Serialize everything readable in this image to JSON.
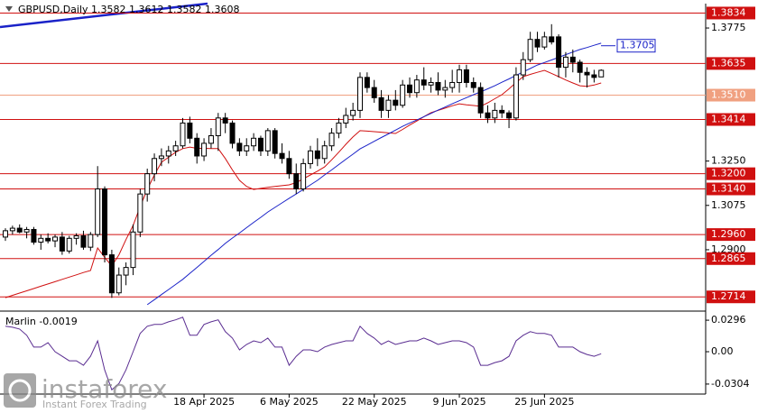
{
  "chart_data": {
    "type": "candlestick",
    "title": "GBPUSD,Daily  1.3582 1.3612 1.3582 1.3608",
    "categories": [
      null,
      null,
      null,
      null,
      null,
      null,
      null,
      null,
      null,
      null,
      null,
      null,
      null,
      null,
      null,
      null,
      null,
      null,
      null,
      null,
      null,
      null,
      null,
      null,
      null,
      null,
      null,
      null,
      "18 Apr 2025",
      null,
      null,
      null,
      null,
      null,
      null,
      null,
      null,
      null,
      null,
      null,
      "6 May 2025",
      null,
      null,
      null,
      null,
      null,
      null,
      null,
      null,
      null,
      null,
      null,
      "22 May 2025",
      null,
      null,
      null,
      null,
      null,
      null,
      null,
      null,
      null,
      null,
      null,
      "9 Jun 2025",
      null,
      null,
      null,
      null,
      null,
      null,
      null,
      null,
      null,
      null,
      null,
      "25 Jun 2025",
      null,
      null,
      null,
      null,
      null,
      null,
      null,
      null
    ],
    "ohlc": [
      [
        1.295,
        1.2985,
        1.2935,
        1.2975
      ],
      [
        1.2975,
        1.2995,
        1.296,
        1.2985
      ],
      [
        1.2985,
        1.3,
        1.2965,
        1.297
      ],
      [
        1.297,
        1.299,
        1.2945,
        1.298
      ],
      [
        1.298,
        1.299,
        1.292,
        1.293
      ],
      [
        1.293,
        1.296,
        1.29,
        1.2945
      ],
      [
        1.2945,
        1.2965,
        1.2925,
        1.2935
      ],
      [
        1.2935,
        1.296,
        1.291,
        1.295
      ],
      [
        1.295,
        1.297,
        1.288,
        1.2895
      ],
      [
        1.2895,
        1.2955,
        1.2885,
        1.2945
      ],
      [
        1.2945,
        1.2965,
        1.292,
        1.2955
      ],
      [
        1.2955,
        1.2975,
        1.29,
        1.291
      ],
      [
        1.291,
        1.297,
        1.2895,
        1.296
      ],
      [
        1.296,
        1.323,
        1.295,
        1.314
      ],
      [
        1.314,
        1.315,
        1.285,
        1.288
      ],
      [
        1.288,
        1.29,
        1.271,
        1.273
      ],
      [
        1.273,
        1.283,
        1.272,
        1.28
      ],
      [
        1.28,
        1.285,
        1.276,
        1.283
      ],
      [
        1.283,
        1.3,
        1.28,
        1.297
      ],
      [
        1.297,
        1.314,
        1.295,
        1.312
      ],
      [
        1.312,
        1.322,
        1.309,
        1.32
      ],
      [
        1.32,
        1.328,
        1.317,
        1.326
      ],
      [
        1.326,
        1.33,
        1.323,
        1.327
      ],
      [
        1.327,
        1.331,
        1.324,
        1.329
      ],
      [
        1.329,
        1.333,
        1.327,
        1.331
      ],
      [
        1.331,
        1.342,
        1.33,
        1.34
      ],
      [
        1.34,
        1.3425,
        1.332,
        1.334
      ],
      [
        1.334,
        1.336,
        1.324,
        1.327
      ],
      [
        1.327,
        1.334,
        1.325,
        1.332
      ],
      [
        1.332,
        1.338,
        1.33,
        1.335
      ],
      [
        1.335,
        1.344,
        1.329,
        1.342
      ],
      [
        1.342,
        1.344,
        1.336,
        1.34
      ],
      [
        1.34,
        1.341,
        1.33,
        1.332
      ],
      [
        1.332,
        1.334,
        1.327,
        1.329
      ],
      [
        1.329,
        1.334,
        1.327,
        1.331
      ],
      [
        1.331,
        1.336,
        1.329,
        1.334
      ],
      [
        1.334,
        1.335,
        1.327,
        1.329
      ],
      [
        1.329,
        1.338,
        1.327,
        1.337
      ],
      [
        1.337,
        1.338,
        1.326,
        1.328
      ],
      [
        1.328,
        1.332,
        1.324,
        1.326
      ],
      [
        1.326,
        1.329,
        1.318,
        1.32
      ],
      [
        1.32,
        1.324,
        1.312,
        1.314
      ],
      [
        1.314,
        1.326,
        1.313,
        1.324
      ],
      [
        1.324,
        1.331,
        1.322,
        1.329
      ],
      [
        1.329,
        1.334,
        1.323,
        1.326
      ],
      [
        1.326,
        1.333,
        1.324,
        1.331
      ],
      [
        1.331,
        1.338,
        1.329,
        1.336
      ],
      [
        1.336,
        1.342,
        1.334,
        1.34
      ],
      [
        1.34,
        1.346,
        1.338,
        1.343
      ],
      [
        1.343,
        1.348,
        1.341,
        1.345
      ],
      [
        1.345,
        1.36,
        1.342,
        1.358
      ],
      [
        1.358,
        1.36,
        1.352,
        1.354
      ],
      [
        1.354,
        1.357,
        1.348,
        1.35
      ],
      [
        1.35,
        1.353,
        1.342,
        1.345
      ],
      [
        1.345,
        1.351,
        1.342,
        1.349
      ],
      [
        1.349,
        1.353,
        1.345,
        1.347
      ],
      [
        1.347,
        1.357,
        1.346,
        1.355
      ],
      [
        1.355,
        1.358,
        1.35,
        1.352
      ],
      [
        1.352,
        1.359,
        1.35,
        1.357
      ],
      [
        1.357,
        1.362,
        1.353,
        1.355
      ],
      [
        1.355,
        1.358,
        1.352,
        1.356
      ],
      [
        1.356,
        1.36,
        1.351,
        1.353
      ],
      [
        1.353,
        1.357,
        1.35,
        1.354
      ],
      [
        1.354,
        1.361,
        1.352,
        1.356
      ],
      [
        1.356,
        1.363,
        1.352,
        1.361
      ],
      [
        1.361,
        1.363,
        1.354,
        1.356
      ],
      [
        1.356,
        1.358,
        1.352,
        1.354
      ],
      [
        1.354,
        1.356,
        1.342,
        1.344
      ],
      [
        1.344,
        1.347,
        1.34,
        1.342
      ],
      [
        1.342,
        1.348,
        1.34,
        1.345
      ],
      [
        1.345,
        1.347,
        1.342,
        1.344
      ],
      [
        1.344,
        1.345,
        1.338,
        1.342
      ],
      [
        1.342,
        1.362,
        1.341,
        1.359
      ],
      [
        1.359,
        1.368,
        1.357,
        1.365
      ],
      [
        1.365,
        1.376,
        1.364,
        1.373
      ],
      [
        1.373,
        1.376,
        1.368,
        1.37
      ],
      [
        1.37,
        1.376,
        1.369,
        1.374
      ],
      [
        1.374,
        1.379,
        1.371,
        1.372
      ],
      [
        1.374,
        1.375,
        1.358,
        1.362
      ],
      [
        1.362,
        1.368,
        1.358,
        1.366
      ],
      [
        1.366,
        1.369,
        1.36,
        1.364
      ],
      [
        1.364,
        1.365,
        1.356,
        1.36
      ],
      [
        1.36,
        1.362,
        1.354,
        1.359
      ],
      [
        1.359,
        1.361,
        1.356,
        1.358
      ],
      [
        1.3582,
        1.3612,
        1.3582,
        1.3608
      ]
    ],
    "up_color": "#ffffff",
    "down_color": "#000000",
    "ylim": [
      1.2665,
      1.3857
    ],
    "yticks": [
      1.3775,
      {
        "value": 1.325,
        "label": "1.3250"
      },
      1.3075,
      {
        "value": 1.29,
        "label": "1.2900"
      }
    ],
    "lines": [
      {
        "color": "#d01010",
        "values": [
          1.2711,
          1.272,
          1.2729,
          1.2738,
          1.2747,
          1.2756,
          1.2765,
          1.2774,
          1.2783,
          1.2792,
          1.2801,
          1.281,
          1.2818,
          1.2907,
          1.287,
          1.2836,
          1.288,
          1.294,
          1.2996,
          1.307,
          1.3138,
          1.3195,
          1.3245,
          1.3265,
          1.3285,
          1.3299,
          1.3305,
          1.33,
          1.33,
          1.3299,
          1.3299,
          1.326,
          1.3215,
          1.3174,
          1.315,
          1.3138,
          1.3142,
          1.3146,
          1.315,
          1.3153,
          1.3156,
          1.3165,
          1.318,
          1.3195,
          1.321,
          1.3227,
          1.3255,
          1.3285,
          1.3316,
          1.3345,
          1.337,
          1.3368,
          1.3366,
          1.3364,
          1.3361,
          1.3359,
          1.3375,
          1.3392,
          1.3408,
          1.3425,
          1.3441,
          1.345,
          1.3459,
          1.3468,
          1.3476,
          1.3472,
          1.3469,
          1.3466,
          1.348,
          1.3496,
          1.3512,
          1.3535,
          1.356,
          1.3583,
          1.3592,
          1.36,
          1.3608,
          1.3596,
          1.3583,
          1.357,
          1.3558,
          1.3547,
          1.3545,
          1.355,
          1.3558
        ]
      },
      {
        "color": "#1a22c8",
        "values": [
          null,
          null,
          null,
          null,
          null,
          null,
          null,
          null,
          null,
          null,
          null,
          null,
          null,
          null,
          null,
          null,
          null,
          null,
          null,
          null,
          1.2683,
          1.2703,
          1.2723,
          1.2743,
          1.2763,
          1.2783,
          1.2807,
          1.283,
          1.2854,
          1.2878,
          1.2901,
          1.2925,
          1.2946,
          1.2966,
          1.2987,
          1.3008,
          1.3028,
          1.3049,
          1.3067,
          1.3085,
          1.3103,
          1.312,
          1.3138,
          1.3156,
          1.3174,
          1.3195,
          1.3215,
          1.3236,
          1.3257,
          1.3277,
          1.3298,
          1.3313,
          1.3328,
          1.3343,
          1.3357,
          1.3372,
          1.3387,
          1.34,
          1.3412,
          1.3425,
          1.3438,
          1.3451,
          1.3463,
          1.3476,
          1.3488,
          1.35,
          1.3512,
          1.3523,
          1.3535,
          1.3547,
          1.3561,
          1.3574,
          1.3588,
          1.3602,
          1.3615,
          1.3629,
          1.3639,
          1.3649,
          1.3659,
          1.367,
          1.368,
          1.369,
          1.3698,
          1.3707,
          1.3715
        ]
      }
    ],
    "levels": [
      {
        "value": 1.3834,
        "label": "1.3834",
        "color": "#d01010"
      },
      {
        "value": 1.3635,
        "label": "1.3635",
        "color": "#d01010"
      },
      {
        "value": 1.351,
        "label": "1.3510",
        "color": "#f0a080"
      },
      {
        "value": 1.3414,
        "label": "1.3414",
        "color": "#d01010"
      },
      {
        "value": 1.32,
        "label": "1.3200",
        "color": "#d01010"
      },
      {
        "value": 1.314,
        "label": "1.3140",
        "color": "#d01010"
      },
      {
        "value": 1.296,
        "label": "1.2960",
        "color": "#d01010"
      },
      {
        "value": 1.2865,
        "label": "1.2865",
        "color": "#d01010"
      },
      {
        "value": 1.2714,
        "label": "1.2714",
        "color": "#d01010"
      }
    ],
    "annotation": {
      "value": 1.3705,
      "label": "1.3705",
      "color": "#1a22c8"
    },
    "indicator": {
      "type": "line",
      "label": "Marlin -0.0019",
      "color": "#5a2d91",
      "ylim": [
        -0.0381,
        0.0356
      ],
      "yticks": [
        0.0296,
        {
          "value": 0,
          "label": "0.00"
        },
        -0.0304
      ],
      "values": [
        0.0239,
        0.023,
        0.0213,
        0.0154,
        0.0043,
        0.0043,
        0.0085,
        0,
        -0.0043,
        -0.0085,
        -0.0085,
        -0.0128,
        -0.0043,
        0.0102,
        -0.0171,
        -0.0358,
        -0.0299,
        -0.0171,
        0,
        0.0171,
        0.0239,
        0.0256,
        0.0256,
        0.0281,
        0.0299,
        0.0324,
        0.0154,
        0.0154,
        0.0256,
        0.0281,
        0.0299,
        0.0188,
        0.0128,
        0.0017,
        0.0068,
        0.0102,
        0.0085,
        0.0128,
        0.0043,
        0.0043,
        -0.0128,
        -0.0043,
        0.0017,
        0.0017,
        0,
        0.0043,
        0.0068,
        0.0085,
        0.0102,
        0.0102,
        0.0239,
        0.0171,
        0.0128,
        0.0068,
        0.0102,
        0.0068,
        0.0085,
        0.0102,
        0.0102,
        0.0128,
        0.0102,
        0.0068,
        0.0085,
        0.0102,
        0.0102,
        0.0085,
        0.0043,
        -0.0128,
        -0.0128,
        -0.0102,
        -0.0085,
        -0.0043,
        0.0102,
        0.0154,
        0.0188,
        0.0171,
        0.0171,
        0.0154,
        0.0043,
        0.0043,
        0.0043,
        0,
        -0.0026,
        -0.0043,
        -0.0019
      ]
    },
    "watermark": {
      "brand": "instaforex",
      "tagline": "Instant Forex Trading"
    }
  }
}
